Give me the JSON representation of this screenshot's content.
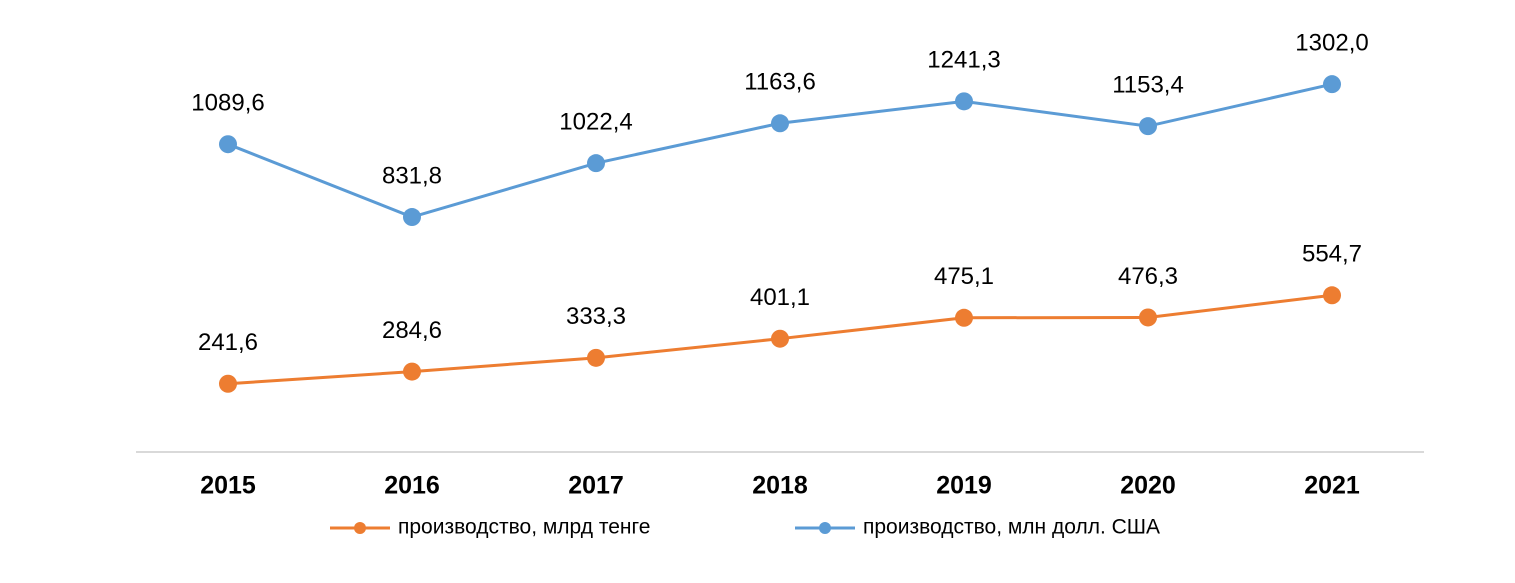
{
  "chart_data": {
    "type": "line",
    "categories": [
      "2015",
      "2016",
      "2017",
      "2018",
      "2019",
      "2020",
      "2021"
    ],
    "series": [
      {
        "name": "производство, млрд тенге",
        "color": "#ed7d31",
        "values": [
          241.6,
          284.6,
          333.3,
          401.1,
          475.1,
          476.3,
          554.7
        ],
        "value_labels": [
          "241,6",
          "284,6",
          "333,3",
          "401,1",
          "475,1",
          "476,3",
          "554,7"
        ]
      },
      {
        "name": "производство, млн долл. США",
        "color": "#5b9bd5",
        "values": [
          1089.6,
          831.8,
          1022.4,
          1163.6,
          1241.3,
          1153.4,
          1302.0
        ],
        "value_labels": [
          "1089,6",
          "831,8",
          "1022,4",
          "1163,6",
          "1241,3",
          "1153,4",
          "1302,0"
        ]
      }
    ],
    "ylim": [
      0,
      1600
    ],
    "legend": "bottom"
  }
}
